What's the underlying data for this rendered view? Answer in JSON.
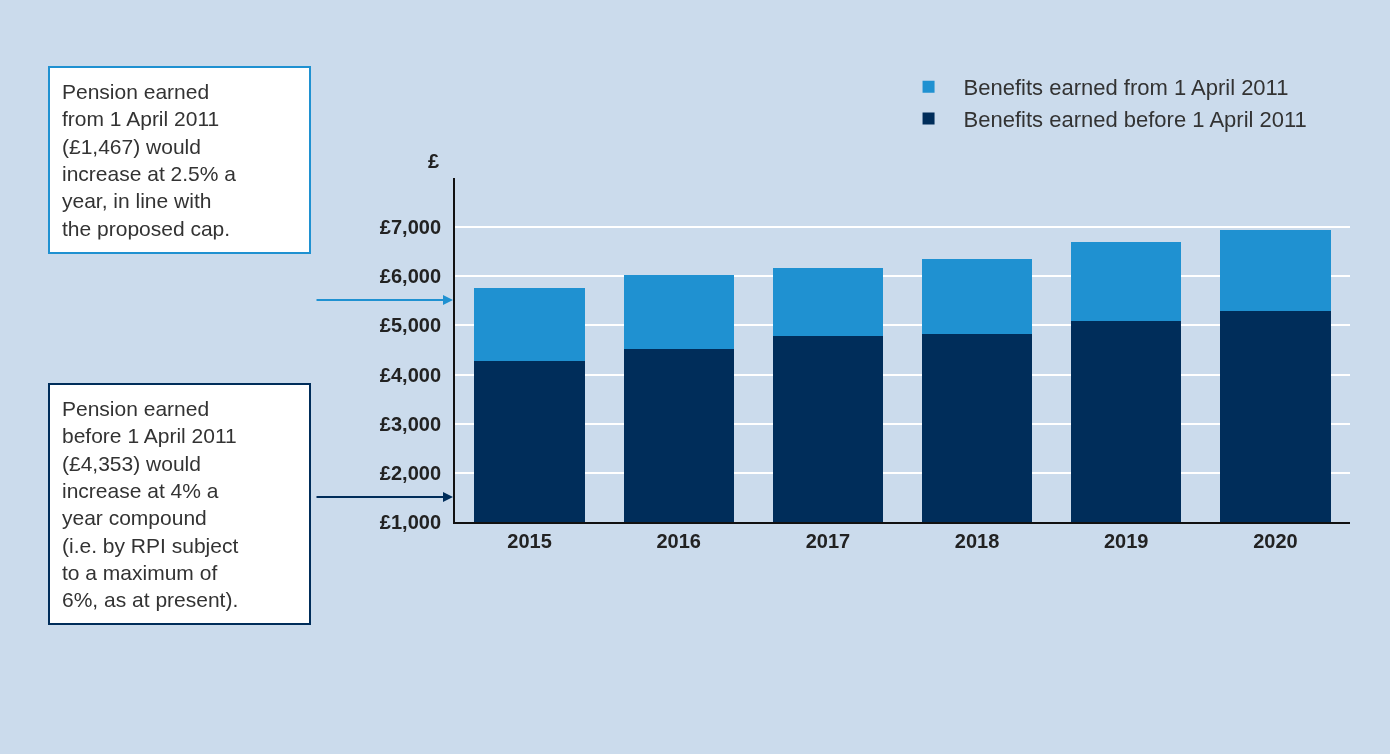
{
  "chart_data": {
    "type": "bar",
    "stacked": true,
    "ylabel": "£",
    "categories": [
      "2015",
      "2016",
      "2017",
      "2018",
      "2019",
      "2020"
    ],
    "series": [
      {
        "name": "Benefits earned before 1 April 2011",
        "color": "#002d5a",
        "values": [
          4270,
          4520,
          4780,
          4830,
          5090,
          5290
        ]
      },
      {
        "name": "Benefits earned from 1 April 2011",
        "color": "#1f91d1",
        "values": [
          1490,
          1500,
          1390,
          1530,
          1600,
          1660
        ]
      }
    ],
    "ylim": [
      1000,
      8000
    ],
    "yticks": [
      {
        "value": 1000,
        "label": "£1,000"
      },
      {
        "value": 2000,
        "label": "£2,000"
      },
      {
        "value": 3000,
        "label": "£3,000"
      },
      {
        "value": 4000,
        "label": "£4,000"
      },
      {
        "value": 5000,
        "label": "£5,000"
      },
      {
        "value": 6000,
        "label": "£6,000"
      },
      {
        "value": 7000,
        "label": "£7,000"
      }
    ],
    "grid": "y",
    "legend": "top right",
    "annotations": [
      "Pension earned\nfrom 1 April 2011\n(£1,467) would\nincrease at 2.5% a\nyear, in line with\nthe proposed cap.",
      "Pension earned\nbefore 1 April 2011\n(£4,353) would\nincrease at 4% a\nyear compound\n(i.e. by RPI subject\nto a maximum of\n6%, as at present)."
    ]
  }
}
